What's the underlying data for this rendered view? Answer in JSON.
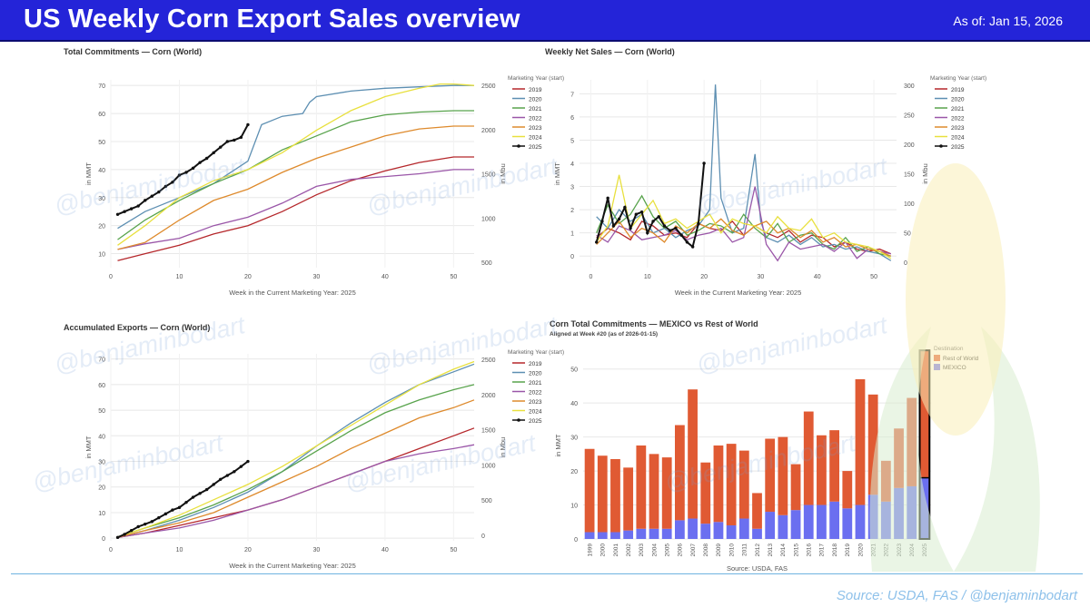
{
  "header": {
    "title": "US Weekly Corn Export Sales overview",
    "as_of": "As of: Jan 15, 2026"
  },
  "footer": {
    "source": "Source: USDA, FAS / @benjaminbodart"
  },
  "watermark": {
    "text": "@benjaminbodart"
  },
  "colors": {
    "banner": "#2424d8",
    "2019": "#b5272b",
    "2020": "#5d8fb2",
    "2021": "#58a34c",
    "2022": "#9a56a8",
    "2023": "#de8a2c",
    "2024": "#e8e03e",
    "2025": "#111111",
    "row": "#e05a33",
    "mexico": "#6b6ff0"
  },
  "chart_data": [
    {
      "id": "tc",
      "type": "line",
      "title": "Total Commitments — Corn (World)",
      "xlabel": "Week in the Current Marketing Year: 2025",
      "ylabel": "in MMT",
      "ylabel_right": "in Mbu",
      "xlim": [
        0,
        53
      ],
      "ylim": [
        5,
        72
      ],
      "xticks": [
        0,
        10,
        20,
        30,
        40,
        50
      ],
      "yticks": [
        10,
        20,
        30,
        40,
        50,
        60,
        70
      ],
      "right_ticks": [
        500,
        1000,
        1500,
        2000,
        2500
      ],
      "legend_title": "Marketing Year (start)",
      "series": [
        {
          "name": "2019",
          "x": [
            1,
            5,
            10,
            15,
            20,
            25,
            30,
            35,
            40,
            45,
            50,
            53
          ],
          "y": [
            7.5,
            10,
            13,
            17,
            20,
            25,
            31,
            36,
            39.5,
            42.5,
            44.5,
            44.5
          ]
        },
        {
          "name": "2020",
          "x": [
            1,
            5,
            10,
            15,
            20,
            22,
            25,
            28,
            29,
            30,
            35,
            40,
            45,
            50,
            53
          ],
          "y": [
            19,
            25,
            30,
            35,
            43,
            56,
            59,
            60,
            64,
            66,
            68,
            69,
            69.5,
            70,
            70
          ]
        },
        {
          "name": "2021",
          "x": [
            1,
            5,
            10,
            15,
            20,
            25,
            30,
            35,
            40,
            45,
            50,
            53
          ],
          "y": [
            15,
            22,
            29,
            35,
            40,
            47,
            52,
            57,
            59.5,
            60.5,
            61,
            61
          ]
        },
        {
          "name": "2022",
          "x": [
            1,
            5,
            10,
            15,
            20,
            25,
            30,
            35,
            40,
            45,
            50,
            53
          ],
          "y": [
            11.5,
            13.5,
            15.5,
            20,
            23,
            28,
            34,
            36.5,
            37.5,
            38.5,
            40,
            40
          ]
        },
        {
          "name": "2023",
          "x": [
            1,
            5,
            10,
            15,
            20,
            25,
            30,
            35,
            40,
            45,
            50,
            53
          ],
          "y": [
            11.5,
            14,
            22,
            29,
            33,
            39,
            44,
            48,
            52,
            54.5,
            55.5,
            55.5
          ]
        },
        {
          "name": "2024",
          "x": [
            1,
            5,
            10,
            15,
            20,
            25,
            30,
            35,
            40,
            45,
            48,
            50,
            53
          ],
          "y": [
            13,
            20,
            30,
            36,
            40,
            46,
            54,
            61,
            66,
            69,
            70.5,
            70.5,
            70
          ]
        },
        {
          "name": "2025",
          "x": [
            1,
            2,
            3,
            4,
            5,
            6,
            7,
            8,
            9,
            10,
            11,
            12,
            13,
            14,
            15,
            16,
            17,
            18,
            19,
            20
          ],
          "y": [
            24,
            25,
            26,
            27,
            29,
            30.5,
            32,
            34,
            35.5,
            38,
            39,
            40.5,
            42.5,
            44,
            46,
            48,
            50,
            50.5,
            51.5,
            56
          ]
        }
      ]
    },
    {
      "id": "wns",
      "type": "line",
      "title": "Weekly Net Sales — Corn (World)",
      "xlabel": "Week in the Current Marketing Year: 2025",
      "ylabel": "in MMT",
      "ylabel_right": "in Mbu",
      "xlim": [
        -2,
        54
      ],
      "ylim": [
        -0.5,
        7.6
      ],
      "xticks": [
        0,
        10,
        20,
        30,
        40,
        50
      ],
      "yticks": [
        0,
        1,
        2,
        3,
        4,
        5,
        6,
        7
      ],
      "right_ticks": [
        0,
        50,
        100,
        150,
        200,
        250,
        300
      ],
      "legend_title": "Marketing Year (start)",
      "series": [
        {
          "name": "2019",
          "x": [
            1,
            3,
            5,
            7,
            9,
            11,
            13,
            15,
            17,
            19,
            21,
            23,
            25,
            27,
            29,
            31,
            33,
            35,
            37,
            39,
            41,
            43,
            45,
            47,
            49,
            51,
            53
          ],
          "y": [
            0.8,
            1.2,
            1.0,
            0.7,
            1.5,
            1.3,
            0.9,
            1.0,
            0.8,
            1.4,
            1.2,
            1.1,
            1.5,
            0.9,
            1.3,
            1.0,
            0.8,
            1.1,
            0.6,
            0.9,
            0.8,
            0.4,
            0.6,
            0.3,
            0.2,
            0.3,
            0.1
          ]
        },
        {
          "name": "2020",
          "x": [
            1,
            3,
            5,
            7,
            9,
            11,
            13,
            15,
            17,
            19,
            21,
            22,
            23,
            25,
            27,
            29,
            30,
            31,
            33,
            35,
            37,
            39,
            41,
            43,
            45,
            47,
            49,
            51,
            53
          ],
          "y": [
            1.7,
            1.2,
            2.0,
            1.5,
            1.8,
            1.0,
            1.2,
            0.8,
            1.1,
            1.3,
            2.0,
            7.4,
            2.5,
            1.0,
            1.2,
            4.4,
            1.5,
            0.8,
            0.6,
            0.9,
            0.5,
            0.8,
            0.4,
            0.5,
            0.3,
            0.4,
            0.2,
            0.1,
            -0.2
          ]
        },
        {
          "name": "2021",
          "x": [
            1,
            3,
            5,
            7,
            9,
            11,
            13,
            15,
            17,
            19,
            21,
            23,
            25,
            27,
            29,
            31,
            33,
            35,
            37,
            39,
            41,
            43,
            45,
            47,
            49,
            51,
            53
          ],
          "y": [
            1.0,
            2.2,
            1.4,
            1.8,
            2.6,
            1.7,
            1.2,
            1.5,
            0.9,
            1.1,
            1.4,
            1.3,
            1.0,
            1.8,
            1.2,
            0.8,
            1.4,
            0.6,
            0.9,
            1.0,
            0.5,
            0.3,
            0.8,
            0.2,
            0.4,
            0.1,
            0.0
          ]
        },
        {
          "name": "2022",
          "x": [
            1,
            3,
            5,
            7,
            9,
            11,
            13,
            15,
            17,
            19,
            21,
            23,
            25,
            27,
            29,
            31,
            33,
            35,
            37,
            39,
            41,
            43,
            45,
            47,
            49,
            51,
            53
          ],
          "y": [
            0.9,
            0.6,
            1.3,
            1.1,
            0.7,
            0.8,
            0.9,
            1.1,
            0.7,
            0.9,
            1.0,
            1.2,
            0.6,
            0.8,
            3.0,
            0.5,
            -0.2,
            0.6,
            0.3,
            0.4,
            0.5,
            0.2,
            0.6,
            -0.1,
            0.3,
            0.2,
            0.1
          ]
        },
        {
          "name": "2023",
          "x": [
            1,
            3,
            5,
            7,
            9,
            11,
            13,
            15,
            17,
            19,
            21,
            23,
            25,
            27,
            29,
            31,
            33,
            35,
            37,
            39,
            41,
            43,
            45,
            47,
            49,
            51,
            53
          ],
          "y": [
            0.5,
            1.0,
            1.5,
            0.8,
            1.2,
            1.0,
            0.6,
            1.3,
            1.0,
            1.4,
            1.2,
            1.6,
            1.1,
            0.9,
            1.3,
            1.5,
            1.0,
            1.2,
            0.8,
            1.1,
            0.6,
            0.8,
            0.4,
            0.5,
            0.3,
            0.2,
            0.0
          ]
        },
        {
          "name": "2024",
          "x": [
            1,
            3,
            5,
            7,
            9,
            11,
            13,
            15,
            17,
            19,
            21,
            23,
            25,
            27,
            29,
            31,
            33,
            35,
            37,
            39,
            41,
            43,
            45,
            47,
            49,
            51,
            53
          ],
          "y": [
            0.6,
            1.3,
            3.5,
            1.2,
            1.8,
            2.4,
            1.4,
            1.6,
            1.2,
            1.5,
            1.8,
            1.0,
            1.6,
            1.4,
            1.3,
            1.0,
            1.7,
            1.2,
            1.1,
            1.6,
            0.8,
            1.0,
            0.6,
            0.5,
            0.4,
            0.2,
            -0.1
          ]
        },
        {
          "name": "2025",
          "x": [
            1,
            2,
            3,
            4,
            5,
            6,
            7,
            8,
            9,
            10,
            11,
            12,
            13,
            14,
            15,
            16,
            17,
            18,
            19,
            20
          ],
          "y": [
            0.6,
            1.5,
            2.5,
            1.3,
            1.6,
            2.1,
            1.2,
            1.8,
            1.9,
            1.0,
            1.5,
            1.7,
            1.3,
            1.1,
            1.2,
            0.9,
            0.6,
            0.4,
            1.4,
            4.0
          ]
        }
      ]
    },
    {
      "id": "ae",
      "type": "line",
      "title": "Accumulated Exports — Corn (World)",
      "xlabel": "Week in the Current Marketing Year: 2025",
      "ylabel": "in MMT",
      "ylabel_right": "in Mbu",
      "xlim": [
        0,
        53
      ],
      "ylim": [
        -1,
        72
      ],
      "xticks": [
        0,
        10,
        20,
        30,
        40,
        50
      ],
      "yticks": [
        0,
        10,
        20,
        30,
        40,
        50,
        60,
        70
      ],
      "right_ticks": [
        0,
        500,
        1000,
        1500,
        2000,
        2500
      ],
      "legend_title": "Marketing Year (start)",
      "series": [
        {
          "name": "2019",
          "x": [
            1,
            5,
            10,
            15,
            20,
            25,
            30,
            35,
            40,
            45,
            50,
            53
          ],
          "y": [
            0.3,
            2,
            5,
            8,
            11,
            15,
            20,
            25,
            30,
            35,
            40,
            43
          ]
        },
        {
          "name": "2020",
          "x": [
            1,
            5,
            10,
            15,
            20,
            25,
            30,
            35,
            40,
            45,
            50,
            53
          ],
          "y": [
            0.3,
            3,
            7,
            12,
            18,
            26,
            36,
            45,
            53,
            60,
            65,
            68
          ]
        },
        {
          "name": "2021",
          "x": [
            1,
            5,
            10,
            15,
            20,
            25,
            30,
            35,
            40,
            45,
            50,
            53
          ],
          "y": [
            0.5,
            4,
            8,
            13,
            19,
            26,
            34,
            42,
            49,
            54,
            58,
            60
          ]
        },
        {
          "name": "2022",
          "x": [
            1,
            5,
            10,
            15,
            20,
            25,
            30,
            35,
            40,
            45,
            50,
            53
          ],
          "y": [
            0.3,
            2,
            4,
            7,
            11,
            15,
            20,
            25,
            30,
            33,
            35,
            36.5
          ]
        },
        {
          "name": "2023",
          "x": [
            1,
            5,
            10,
            15,
            20,
            25,
            30,
            35,
            40,
            45,
            50,
            53
          ],
          "y": [
            0.3,
            3,
            6,
            10,
            16,
            22,
            28,
            35,
            41,
            47,
            51,
            54
          ]
        },
        {
          "name": "2024",
          "x": [
            1,
            5,
            10,
            15,
            20,
            25,
            30,
            35,
            40,
            45,
            50,
            53
          ],
          "y": [
            0.5,
            4,
            9,
            15,
            21,
            28,
            36,
            44,
            52,
            60,
            66,
            69
          ]
        },
        {
          "name": "2025",
          "x": [
            1,
            2,
            3,
            4,
            5,
            6,
            7,
            8,
            9,
            10,
            11,
            12,
            13,
            14,
            15,
            16,
            17,
            18,
            19,
            20
          ],
          "y": [
            0.3,
            1.5,
            3,
            4.5,
            5.5,
            6.5,
            8,
            9.5,
            11,
            12,
            14,
            16,
            17.5,
            19,
            21,
            23,
            24.5,
            26,
            28,
            30
          ]
        }
      ]
    },
    {
      "id": "mx",
      "type": "bar",
      "title": "Corn Total Commitments — MEXICO  vs Rest of World",
      "subtitle": "Aligned at Week #20 (as of 2026-01-15)",
      "xlabel": "Source: USDA, FAS",
      "ylabel": "in MMT",
      "ylim": [
        0,
        55
      ],
      "yticks": [
        0,
        10,
        20,
        30,
        40,
        50
      ],
      "legend_title": "Destination",
      "categories": [
        "1999",
        "2000",
        "2001",
        "2002",
        "2003",
        "2004",
        "2005",
        "2006",
        "2007",
        "2008",
        "2009",
        "2010",
        "2011",
        "2012",
        "2013",
        "2014",
        "2015",
        "2016",
        "2017",
        "2018",
        "2019",
        "2020",
        "2021",
        "2022",
        "2023",
        "2024",
        "2025"
      ],
      "series": [
        {
          "name": "MEXICO",
          "values": [
            2,
            2,
            2,
            2.5,
            3,
            3,
            3,
            5.5,
            6,
            4.5,
            5,
            4,
            6,
            3,
            8,
            7,
            8.5,
            10,
            10,
            11,
            9,
            10,
            13,
            11,
            15,
            15.5,
            18
          ]
        },
        {
          "name": "Rest of World",
          "values": [
            24.5,
            22.5,
            21.5,
            18.5,
            24.5,
            22,
            21,
            28,
            38,
            18,
            22.5,
            24,
            20,
            10.5,
            21.5,
            23,
            13.5,
            27.5,
            20.5,
            21,
            11,
            37,
            29.5,
            12,
            17.5,
            26,
            37.5
          ]
        }
      ],
      "highlight": "2025"
    }
  ]
}
